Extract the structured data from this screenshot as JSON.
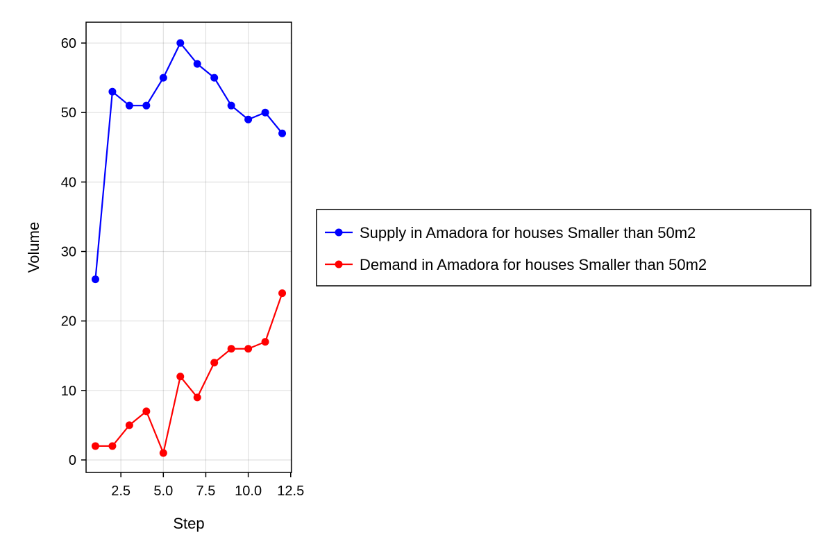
{
  "chart_data": {
    "type": "line",
    "title": "",
    "xlabel": "Step",
    "ylabel": "Volume",
    "xlim": [
      0.45,
      12.55
    ],
    "ylim": [
      -1.8,
      63
    ],
    "x_ticks": [
      2.5,
      5.0,
      7.5,
      10.0,
      12.5
    ],
    "x_tick_labels": [
      "2.5",
      "5.0",
      "7.5",
      "10.0",
      "12.5"
    ],
    "y_ticks": [
      0,
      10,
      20,
      30,
      40,
      50,
      60
    ],
    "y_tick_labels": [
      "0",
      "10",
      "20",
      "30",
      "40",
      "50",
      "60"
    ],
    "grid": true,
    "legend_position": "right",
    "x": [
      1,
      2,
      3,
      4,
      5,
      6,
      7,
      8,
      9,
      10,
      11,
      12
    ],
    "series": [
      {
        "name": "Supply in Amadora for houses Smaller than 50m2",
        "color": "#0000ff",
        "values": [
          26,
          53,
          51,
          51,
          55,
          60,
          57,
          55,
          51,
          49,
          50,
          47
        ]
      },
      {
        "name": "Demand in Amadora for houses Smaller than 50m2",
        "color": "#ff0000",
        "values": [
          2,
          2,
          5,
          7,
          1,
          12,
          9,
          14,
          16,
          16,
          17,
          24
        ]
      }
    ]
  }
}
